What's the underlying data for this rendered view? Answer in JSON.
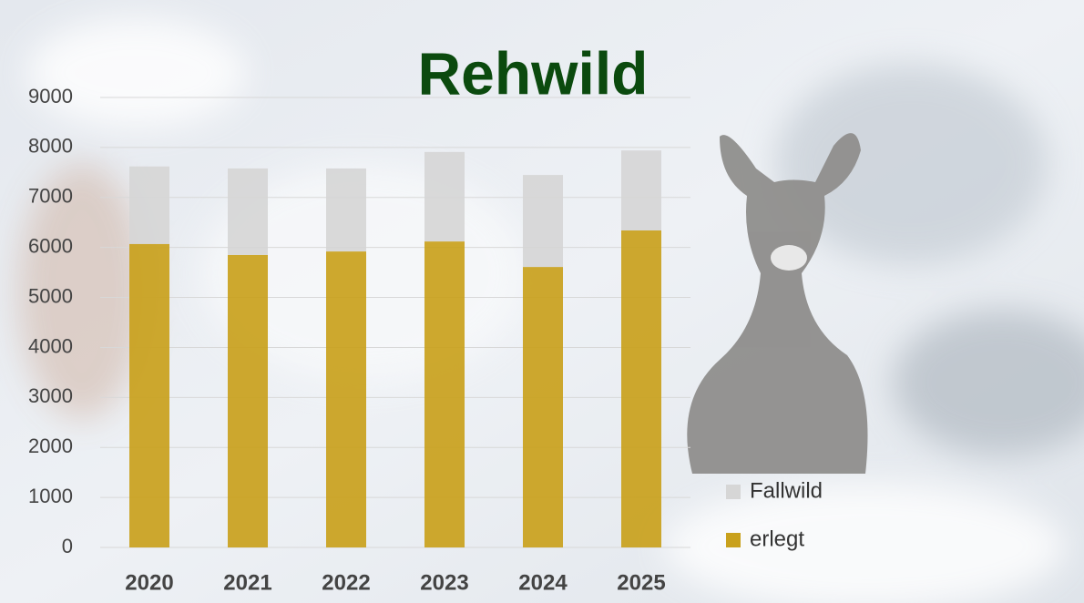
{
  "chart_data": {
    "type": "bar",
    "stacked": true,
    "title": "Rehwild",
    "categories": [
      "2020",
      "2021",
      "2022",
      "2023",
      "2024",
      "2025"
    ],
    "series": [
      {
        "name": "erlegt",
        "color": "#c9a11c",
        "values": [
          6070,
          5850,
          5920,
          6120,
          5610,
          6340
        ]
      },
      {
        "name": "Fallwild",
        "color": "#d6d6d6",
        "values": [
          1550,
          1730,
          1660,
          1790,
          1840,
          1600
        ]
      }
    ],
    "ylim": [
      0,
      9000
    ],
    "yticks": [
      0,
      1000,
      2000,
      3000,
      4000,
      5000,
      6000,
      7000,
      8000,
      9000
    ],
    "grid": true,
    "legend": "right"
  }
}
